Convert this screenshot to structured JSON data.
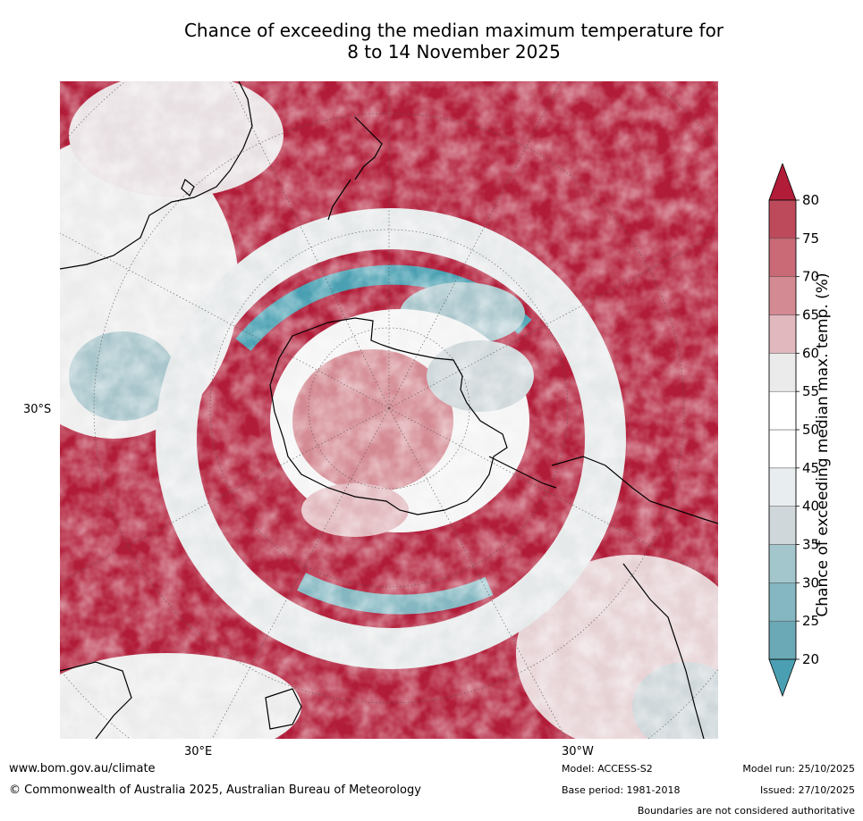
{
  "title": {
    "line1": "Chance of exceeding the median maximum temperature for",
    "line2": "8 to 14 November 2025"
  },
  "map": {
    "latitude_label": "30°S",
    "longitude_labels": [
      "30°E",
      "30°W"
    ],
    "projection": "south-polar stereographic",
    "colors": {
      "warm_high": "#b11c38",
      "warm_mid": "#d2848f",
      "neutral": "#ffffff",
      "cool_mid": "#a9c6cc",
      "cool_high": "#4aa0b2",
      "coastline": "#000000"
    }
  },
  "colorbar": {
    "label": "Chance of exceeding median max. temp. (%)",
    "ticks": [
      "20",
      "25",
      "30",
      "35",
      "40",
      "45",
      "50",
      "55",
      "60",
      "65",
      "70",
      "75",
      "80"
    ],
    "colors": [
      "#6aa9b5",
      "#84b7c1",
      "#a3c6cc",
      "#cfd7da",
      "#e8edef",
      "#ffffff",
      "#ffffff",
      "#ecebeb",
      "#e1b8bd",
      "#d48a93",
      "#c96a76",
      "#bd4a5b"
    ],
    "under_color": "#4aa0b2",
    "over_color": "#b11c38"
  },
  "footer": {
    "url": "www.bom.gov.au/climate",
    "copyright": "© Commonwealth of Australia 2025, Australian Bureau of Meteorology",
    "model": "Model: ACCESS-S2",
    "base_period": "Base period: 1981-2018",
    "model_run": "Model run: 25/10/2025",
    "issued": "Issued: 27/10/2025",
    "disclaimer": "Boundaries are not considered authoritative"
  }
}
